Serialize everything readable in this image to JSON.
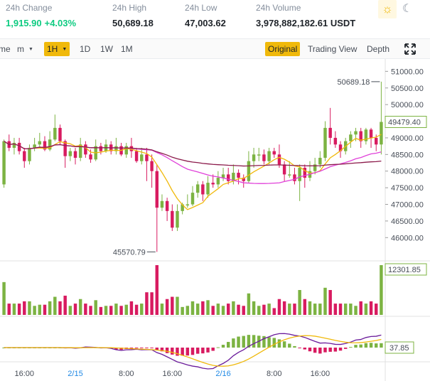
{
  "stats": {
    "change": {
      "label": "24h Change",
      "value": "1,915.90",
      "percent": "+4.03%"
    },
    "high": {
      "label": "24h High",
      "value": "50,689.18"
    },
    "low": {
      "label": "24h Low",
      "value": "47,003.62"
    },
    "volume": {
      "label": "24h Volume",
      "value": "3,978,882,182.61 USDT"
    }
  },
  "theme": {
    "light_icon": "sun-icon",
    "dark_icon": "moon-icon"
  },
  "toolbar": {
    "time_label": "me",
    "minutes_label": "m",
    "active_interval": "1H",
    "day_label": "1D",
    "week_label": "1W",
    "month_label": "1M",
    "original_label": "Original",
    "tradingview_label": "Trading View",
    "depth_label": "Depth",
    "expand_icon": "expand-icon"
  },
  "colors": {
    "up": "#7cb342",
    "down": "#d81b60",
    "accent": "#f0b90b",
    "ma_fast": "#f0b90b",
    "ma_mid": "#e040d9",
    "ma_slow": "#8b1a4a",
    "macd": "#6a1b9a"
  },
  "chart_data": [
    {
      "type": "candlestick",
      "y_axis_ticks": [
        "51000.00",
        "50500.00",
        "50000.00",
        "49500.00",
        "49000.00",
        "48500.00",
        "48000.00",
        "47500.00",
        "47000.00",
        "46500.00",
        "46000.00"
      ],
      "ylim": [
        45600,
        51200
      ],
      "annotations": {
        "high": "50689.18",
        "low": "45570.79",
        "last": "49479.40"
      },
      "candles": [
        [
          47600,
          48900,
          48950,
          47500
        ],
        [
          48900,
          48700,
          49100,
          48600
        ],
        [
          48700,
          48850,
          49000,
          48500
        ],
        [
          48850,
          48600,
          49000,
          48500
        ],
        [
          48600,
          48300,
          48700,
          48100
        ],
        [
          48300,
          48700,
          48800,
          48200
        ],
        [
          48700,
          48800,
          49000,
          48600
        ],
        [
          48800,
          48900,
          49150,
          48700
        ],
        [
          48900,
          48650,
          49050,
          48600
        ],
        [
          48650,
          48950,
          49200,
          48600
        ],
        [
          48950,
          49300,
          49700,
          48900
        ],
        [
          49300,
          48900,
          49400,
          48800
        ],
        [
          48900,
          48450,
          48950,
          48100
        ],
        [
          48450,
          48600,
          48700,
          48300
        ],
        [
          48600,
          48400,
          48700,
          48200
        ],
        [
          48400,
          48800,
          49000,
          48300
        ],
        [
          48800,
          48500,
          48900,
          48400
        ],
        [
          48500,
          48350,
          48650,
          48250
        ],
        [
          48350,
          48750,
          48950,
          48300
        ],
        [
          48750,
          48600,
          48850,
          48500
        ],
        [
          48600,
          48800,
          48950,
          48550
        ],
        [
          48800,
          48600,
          48900,
          48500
        ],
        [
          48600,
          48750,
          49000,
          48500
        ],
        [
          48750,
          48500,
          48850,
          48450
        ],
        [
          48500,
          48750,
          48850,
          48400
        ],
        [
          48750,
          48600,
          49000,
          48400
        ],
        [
          48600,
          48300,
          48700,
          48250
        ],
        [
          48300,
          48500,
          48700,
          48200
        ],
        [
          48500,
          48300,
          48700,
          47700
        ],
        [
          48300,
          48000,
          48500,
          47500
        ],
        [
          48000,
          46900,
          48200,
          45570.79
        ],
        [
          46900,
          47100,
          47300,
          46800
        ],
        [
          47100,
          46800,
          47200,
          46500
        ],
        [
          46800,
          46300,
          47000,
          46200
        ],
        [
          46300,
          46800,
          47000,
          46200
        ],
        [
          46800,
          47000,
          47050,
          46700
        ],
        [
          47000,
          47000,
          47300,
          46900
        ],
        [
          47000,
          47350,
          47550,
          46950
        ],
        [
          47350,
          47600,
          47700,
          47200
        ],
        [
          47600,
          47300,
          47700,
          47100
        ],
        [
          47300,
          47650,
          47850,
          47200
        ],
        [
          47650,
          47600,
          47900,
          47500
        ],
        [
          47600,
          47800,
          48000,
          47500
        ],
        [
          47800,
          47900,
          48100,
          47700
        ],
        [
          47900,
          47700,
          48100,
          47600
        ],
        [
          47700,
          47950,
          48200,
          47600
        ],
        [
          47950,
          47800,
          48050,
          47600
        ],
        [
          47800,
          47700,
          47900,
          47500
        ],
        [
          47700,
          48300,
          48600,
          47650
        ],
        [
          48300,
          48500,
          48700,
          48100
        ],
        [
          48500,
          48500,
          48700,
          48300
        ],
        [
          48500,
          48300,
          48650,
          48200
        ],
        [
          48300,
          48600,
          48700,
          48200
        ],
        [
          48600,
          48500,
          48700,
          48400
        ],
        [
          48500,
          48200,
          48800,
          48100
        ],
        [
          48200,
          47900,
          48300,
          47700
        ],
        [
          47900,
          47900,
          48300,
          47800
        ],
        [
          47900,
          47700,
          48100,
          47600
        ],
        [
          47700,
          48100,
          48200,
          47100
        ],
        [
          48100,
          47800,
          48200,
          47500
        ],
        [
          47800,
          48000,
          48300,
          47700
        ],
        [
          48000,
          48200,
          48400,
          47900
        ],
        [
          48200,
          48400,
          48600,
          48100
        ],
        [
          48400,
          49300,
          49500,
          48300
        ],
        [
          49300,
          49000,
          49900,
          48800
        ],
        [
          49000,
          48800,
          49200,
          48700
        ],
        [
          48800,
          48600,
          48900,
          48400
        ],
        [
          48600,
          48900,
          49000,
          48500
        ],
        [
          48900,
          49100,
          49200,
          48700
        ],
        [
          49100,
          49200,
          49300,
          48900
        ],
        [
          49200,
          48900,
          49300,
          48700
        ],
        [
          48900,
          49250,
          49300,
          48800
        ],
        [
          49250,
          49000,
          49300,
          48700
        ],
        [
          49000,
          48800,
          49100,
          48600
        ],
        [
          48800,
          49479.4,
          50689.18,
          48500
        ]
      ],
      "ma_fast_ends": [
        47600,
        48500,
        48850,
        48800
      ],
      "volume_label": "12301.85",
      "macd_label": "37.85",
      "x_ticks": [
        "16:00",
        "2/15",
        "8:00",
        "16:00",
        "2/16",
        "8:00",
        "16:00"
      ]
    }
  ]
}
